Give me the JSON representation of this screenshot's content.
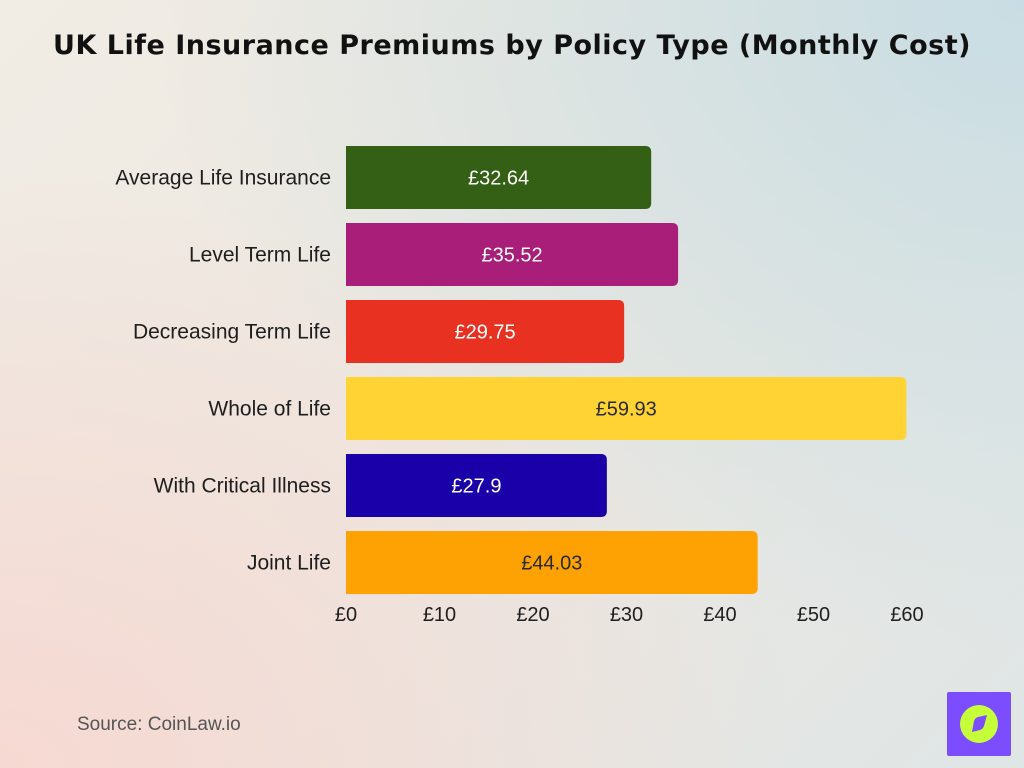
{
  "chart_data": {
    "type": "bar",
    "orientation": "horizontal",
    "title": "UK Life Insurance Premiums by Policy Type (Monthly Cost)",
    "categories": [
      "Average Life Insurance",
      "Level Term Life",
      "Decreasing Term Life",
      "Whole of Life",
      "With Critical Illness",
      "Joint Life"
    ],
    "values": [
      32.64,
      35.52,
      29.75,
      59.93,
      27.9,
      44.03
    ],
    "value_labels": [
      "£32.64",
      "£35.52",
      "£29.75",
      "£59.93",
      "£27.9",
      "£44.03"
    ],
    "colors": [
      "#336014",
      "#a91e78",
      "#e83121",
      "#ffd333",
      "#1900a8",
      "#fea203"
    ],
    "xticks": [
      0,
      10,
      20,
      30,
      40,
      50,
      60
    ],
    "xtick_labels": [
      "£0",
      "£10",
      "£20",
      "£30",
      "£40",
      "£50",
      "£60"
    ],
    "xlim": [
      0,
      60
    ],
    "grid": false,
    "legend": "none"
  },
  "footer": {
    "source": "Source: CoinLaw.io"
  },
  "logo": {
    "icon": "compass-icon",
    "colors": [
      "#7b4dff",
      "#c6ff3a"
    ]
  }
}
